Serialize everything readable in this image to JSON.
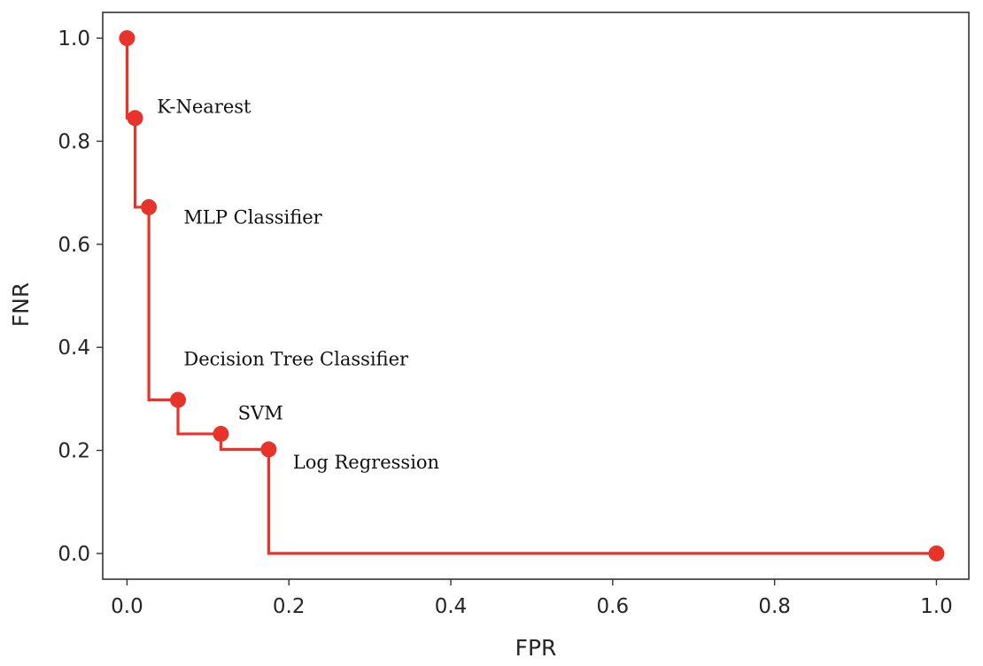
{
  "chart_data": {
    "type": "line",
    "title": "",
    "xlabel": "FPR",
    "ylabel": "FNR",
    "xlim": [
      -0.03,
      1.04
    ],
    "ylim": [
      -0.05,
      1.05
    ],
    "x_ticks": [
      0.0,
      0.2,
      0.4,
      0.6,
      0.8,
      1.0
    ],
    "x_tick_labels": [
      "0.0",
      "0.2",
      "0.4",
      "0.6",
      "0.8",
      "1.0"
    ],
    "y_ticks": [
      0.0,
      0.2,
      0.4,
      0.6,
      0.8,
      1.0
    ],
    "y_tick_labels": [
      "0.0",
      "0.2",
      "0.4",
      "0.6",
      "0.8",
      "1.0"
    ],
    "grid": false,
    "series": [
      {
        "color": "#e8332a",
        "step": "post-x",
        "points": [
          {
            "x": 0.0,
            "y": 1.0
          },
          {
            "x": 0.01,
            "y": 0.845
          },
          {
            "x": 0.027,
            "y": 0.672
          },
          {
            "x": 0.063,
            "y": 0.298
          },
          {
            "x": 0.116,
            "y": 0.232
          },
          {
            "x": 0.175,
            "y": 0.202
          },
          {
            "x": 1.0,
            "y": 0.0
          }
        ]
      }
    ],
    "annotations": [
      {
        "text": "K-Nearest",
        "x": 0.037,
        "y": 0.855
      },
      {
        "text": "MLP Classifier",
        "x": 0.07,
        "y": 0.64
      },
      {
        "text": "Decision Tree Classifier",
        "x": 0.07,
        "y": 0.365
      },
      {
        "text": "SVM",
        "x": 0.137,
        "y": 0.26
      },
      {
        "text": "Log Regression",
        "x": 0.205,
        "y": 0.165
      }
    ]
  }
}
